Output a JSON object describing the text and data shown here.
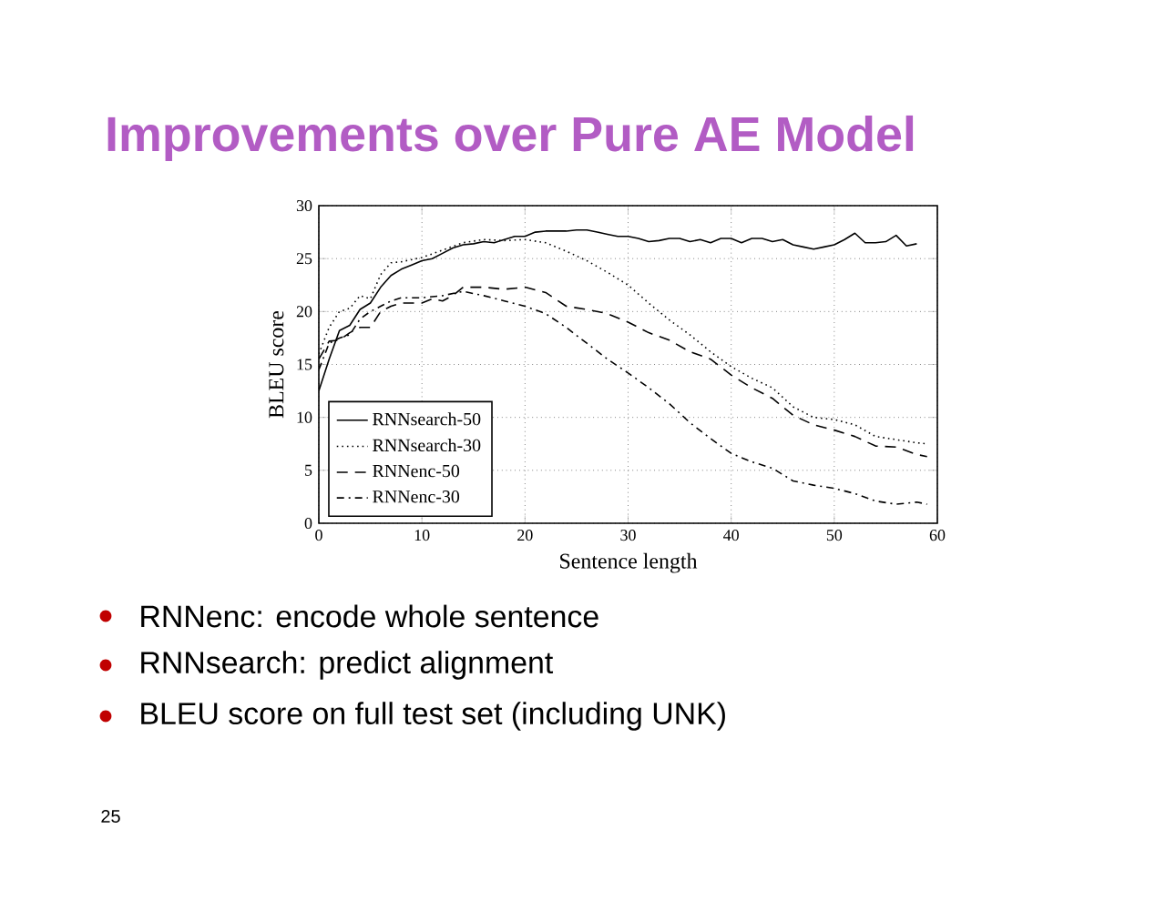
{
  "chart_data": {
    "type": "line",
    "title": "Improvements over Pure AE Model",
    "xlabel": "Sentence length",
    "ylabel": "BLEU score",
    "xlim": [
      0,
      60
    ],
    "ylim": [
      0,
      30
    ],
    "xticks": [
      0,
      10,
      20,
      30,
      40,
      50,
      60
    ],
    "yticks": [
      0,
      5,
      10,
      15,
      20,
      25,
      30
    ],
    "grid": true,
    "legend": "bottom left",
    "marker": "none",
    "series": [
      {
        "name": "RNNsearch-50",
        "color": "#000000",
        "line_style": "solid",
        "x": [
          0,
          1,
          2,
          3,
          4,
          5,
          6,
          7,
          8,
          9,
          10,
          11,
          12,
          13,
          14,
          15,
          16,
          17,
          18,
          19,
          20,
          21,
          22,
          23,
          24,
          25,
          26,
          27,
          28,
          29,
          30,
          31,
          32,
          33,
          34,
          35,
          36,
          37,
          38,
          39,
          40,
          41,
          42,
          43,
          44,
          45,
          46,
          47,
          48,
          49,
          50,
          51,
          52,
          53,
          54,
          55,
          56,
          57,
          58
        ],
        "values": [
          12.5,
          15.5,
          18.2,
          18.7,
          20.2,
          20.8,
          22.3,
          23.4,
          24.0,
          24.4,
          24.8,
          25.0,
          25.5,
          26.0,
          26.3,
          26.4,
          26.6,
          26.5,
          26.8,
          27.1,
          27.1,
          27.5,
          27.6,
          27.6,
          27.6,
          27.7,
          27.7,
          27.5,
          27.3,
          27.1,
          27.1,
          26.9,
          26.6,
          26.7,
          26.9,
          26.9,
          26.6,
          26.8,
          26.5,
          26.9,
          26.9,
          26.5,
          26.9,
          26.9,
          26.6,
          26.8,
          26.3,
          26.1,
          25.9,
          26.1,
          26.3,
          26.8,
          27.4,
          26.5,
          26.5,
          26.6,
          27.2,
          26.2,
          26.4
        ]
      },
      {
        "name": "RNNsearch-30",
        "color": "#000000",
        "line_style": "dotted",
        "x": [
          0,
          1,
          2,
          3,
          4,
          5,
          6,
          7,
          8,
          10,
          12,
          14,
          16,
          18,
          20,
          22,
          24,
          26,
          28,
          30,
          32,
          34,
          36,
          38,
          40,
          42,
          44,
          46,
          48,
          50,
          52,
          54,
          56,
          58,
          59
        ],
        "values": [
          16,
          18.5,
          20.0,
          20.3,
          21.5,
          21.2,
          23.5,
          24.6,
          24.7,
          25.1,
          25.8,
          26.5,
          26.8,
          26.7,
          26.8,
          26.5,
          25.7,
          24.8,
          23.7,
          22.5,
          20.8,
          19.2,
          17.8,
          16.2,
          14.8,
          13.7,
          12.8,
          11.0,
          10.0,
          9.8,
          9.3,
          8.2,
          7.9,
          7.6,
          7.5
        ]
      },
      {
        "name": "RNNenc-50",
        "color": "#000000",
        "line_style": "dashed",
        "x": [
          0,
          1,
          2,
          3,
          4,
          5,
          6,
          7,
          8,
          10,
          11,
          12,
          13,
          14,
          16,
          18,
          20,
          22,
          24,
          26,
          28,
          30,
          32,
          34,
          36,
          38,
          40,
          42,
          44,
          46,
          48,
          50,
          52,
          54,
          56,
          58,
          59
        ],
        "values": [
          15.5,
          17.2,
          17.3,
          18.0,
          18.5,
          18.5,
          20,
          20.5,
          20.8,
          20.8,
          21.2,
          21.0,
          21.5,
          22.3,
          22.3,
          22.1,
          22.3,
          21.8,
          20.5,
          20.2,
          19.8,
          19.0,
          18.0,
          17.3,
          16.2,
          15.5,
          14.0,
          12.8,
          11.8,
          10.2,
          9.3,
          8.8,
          8.2,
          7.3,
          7.2,
          6.5,
          6.3
        ]
      },
      {
        "name": "RNNenc-30",
        "color": "#000000",
        "line_style": "dashdot",
        "x": [
          0,
          1,
          2,
          3,
          4,
          5,
          6,
          7,
          8,
          10,
          12,
          14,
          16,
          18,
          20,
          22,
          24,
          26,
          28,
          30,
          32,
          34,
          36,
          38,
          40,
          42,
          44,
          46,
          48,
          50,
          52,
          54,
          56,
          58,
          59
        ],
        "values": [
          14.5,
          17,
          17.5,
          17.8,
          19.3,
          20,
          20.5,
          21,
          21.3,
          21.3,
          21.5,
          21.9,
          21.5,
          21.0,
          20.5,
          19.8,
          18.5,
          17.0,
          15.5,
          14.2,
          12.8,
          11.3,
          9.5,
          8.0,
          6.6,
          5.8,
          5.2,
          4.0,
          3.6,
          3.3,
          2.8,
          2.1,
          1.8,
          2.0,
          1.8
        ]
      }
    ],
    "annotations": [
      "RNNenc: encode whole sentence",
      "RNNsearch: predict alignment",
      "BLEU score on full test set (including UNK)",
      "25"
    ]
  }
}
